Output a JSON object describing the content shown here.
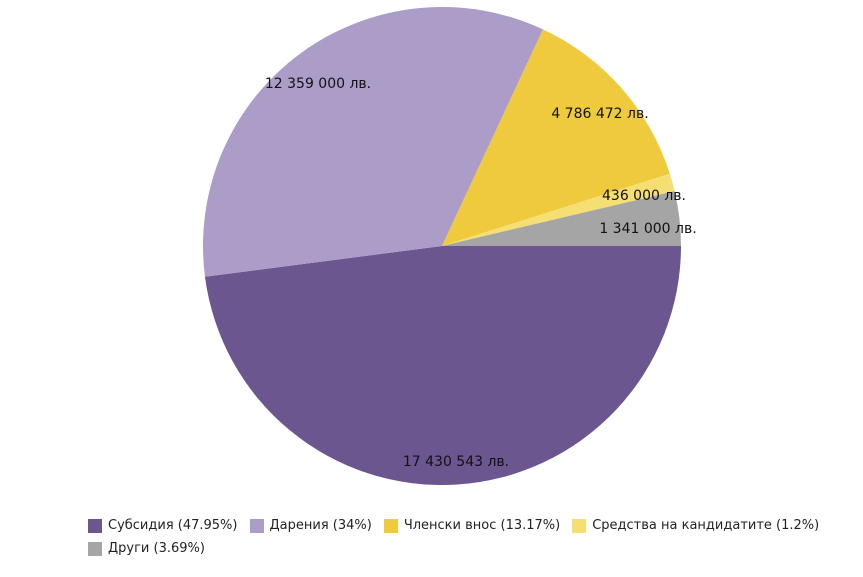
{
  "chart_data": {
    "type": "pie",
    "title": "",
    "legend_position": "bottom",
    "slices": [
      {
        "name": "Субсидия",
        "value": 17430543,
        "percent": 47.95,
        "label": "17 430 543 лв.",
        "legend": "Субсидия (47.95%)",
        "color": "#6b568f"
      },
      {
        "name": "Дарения",
        "value": 12359000,
        "percent": 34,
        "label": "12 359 000 лв.",
        "legend": "Дарения (34%)",
        "color": "#ab9dc7"
      },
      {
        "name": "Членски внос",
        "value": 4786472,
        "percent": 13.17,
        "label": "4 786 472 лв.",
        "legend": "Членски внос (13.17%)",
        "color": "#efca3c"
      },
      {
        "name": "Средства на кандидатите",
        "value": 436000,
        "percent": 1.2,
        "label": "436 000 лв.",
        "legend": "Средства на кандидатите (1.2%)",
        "color": "#f5df72"
      },
      {
        "name": "Други",
        "value": 1341000,
        "percent": 3.69,
        "label": "1 341 000 лв.",
        "legend": "Други (3.69%)",
        "color": "#a5a5a5"
      }
    ]
  }
}
